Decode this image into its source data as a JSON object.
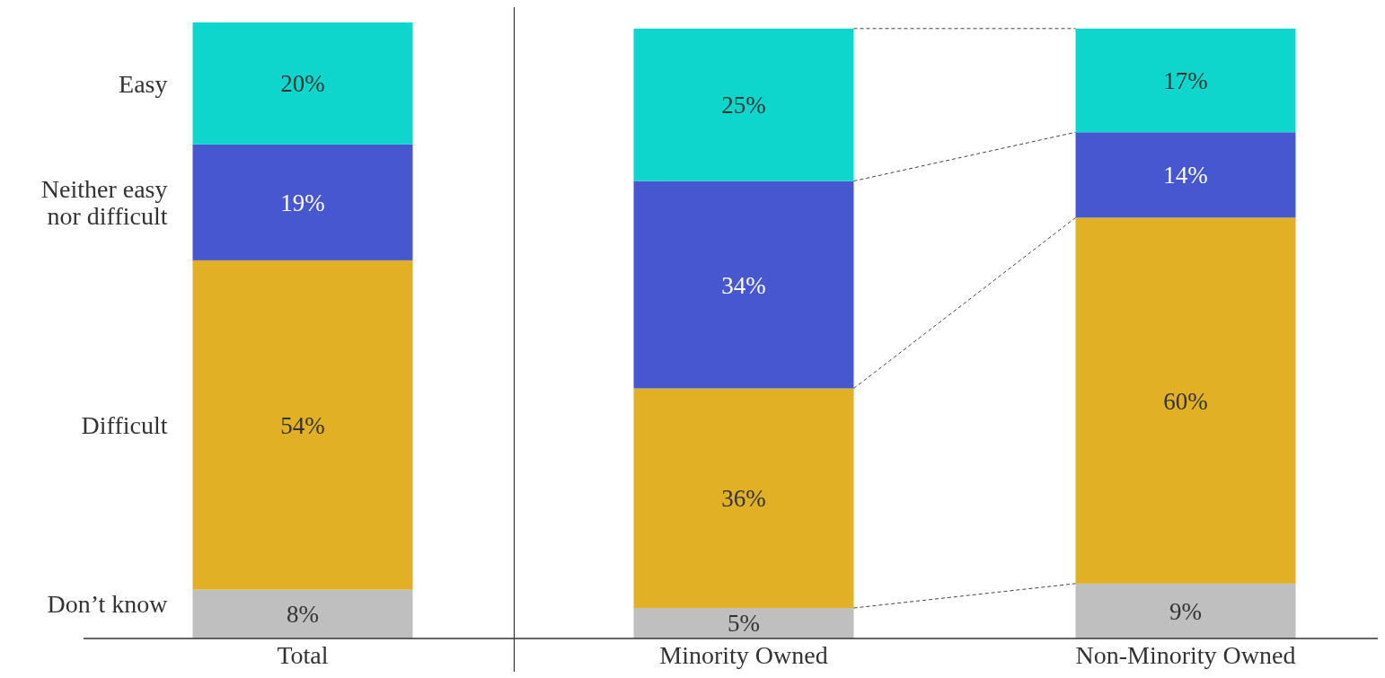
{
  "chart_data": {
    "type": "bar",
    "stacked": true,
    "categories": [
      "Total",
      "Minority Owned",
      "Non-Minority Owned"
    ],
    "series": [
      {
        "name": "Don’t know",
        "color": "#bfbfbf",
        "values": [
          8,
          5,
          9
        ],
        "value_labels": [
          "8%",
          "5%",
          "9%"
        ]
      },
      {
        "name": "Difficult",
        "color": "#e1b024",
        "values": [
          54,
          36,
          60
        ],
        "value_labels": [
          "54%",
          "36%",
          "60%"
        ]
      },
      {
        "name": "Neither easy nor difficult",
        "color": "#4657cf",
        "values": [
          19,
          34,
          14
        ],
        "value_labels": [
          "19%",
          "34%",
          "14%"
        ]
      },
      {
        "name": "Easy",
        "color": "#0fd6cc",
        "values": [
          20,
          25,
          17
        ],
        "value_labels": [
          "20%",
          "25%",
          "17%"
        ]
      }
    ]
  }
}
